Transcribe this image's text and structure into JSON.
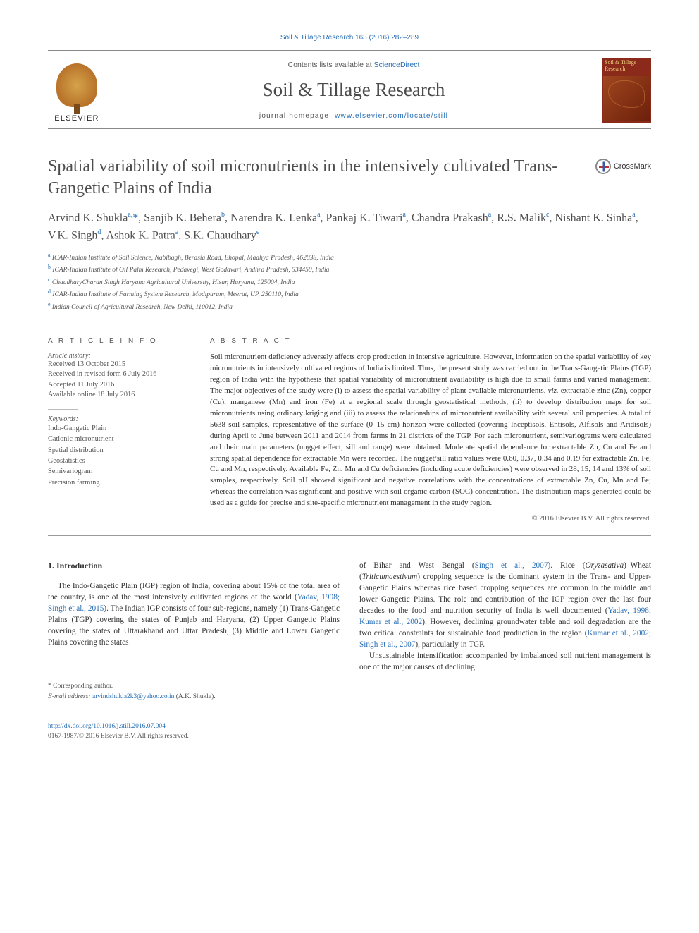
{
  "citation_header": "Soil & Tillage Research 163 (2016) 282–289",
  "masthead": {
    "contents_prefix": "Contents lists available at ",
    "contents_link_text": "ScienceDirect",
    "journal_name": "Soil & Tillage Research",
    "homepage_prefix": "journal homepage: ",
    "homepage_link_text": "www.elsevier.com/locate/still",
    "publisher_logo_text": "ELSEVIER",
    "cover_title": "Soil & Tillage Research"
  },
  "article": {
    "title": "Spatial variability of soil micronutrients in the intensively cultivated Trans-Gangetic Plains of India",
    "crossmark_label": "CrossMark",
    "authors_html": "Arvind K. Shukla<sup>a,</sup><span class='corr'>*</span>, Sanjib K. Behera<sup>b</sup>, Narendra K. Lenka<sup>a</sup>, Pankaj K. Tiwari<sup>a</sup>, Chandra Prakash<sup>a</sup>, R.S. Malik<sup>c</sup>, Nishant K. Sinha<sup>a</sup>, V.K. Singh<sup>d</sup>, Ashok K. Patra<sup>a</sup>, S.K. Chaudhary<sup>e</sup>",
    "affiliations": [
      {
        "sup": "a",
        "text": "ICAR-Indian Institute of Soil Science, Nabibagh, Berasia Road, Bhopal, Madhya Pradesh, 462038, India"
      },
      {
        "sup": "b",
        "text": "ICAR-Indian Institute of Oil Palm Research, Pedavegi, West Godavari, Andhra Pradesh, 534450, India"
      },
      {
        "sup": "c",
        "text": "ChaudharyCharan Singh Haryana Agricultural University, Hisar, Haryana, 125004, India"
      },
      {
        "sup": "d",
        "text": "ICAR-Indian Institute of Farming System Research, Modipuram, Meerut, UP, 250110, India"
      },
      {
        "sup": "e",
        "text": "Indian Council of Agricultural Research, New Delhi, 110012, India"
      }
    ]
  },
  "info": {
    "header": "A R T I C L E   I N F O",
    "history_label": "Article history:",
    "history": [
      "Received 13 October 2015",
      "Received in revised form 6 July 2016",
      "Accepted 11 July 2016",
      "Available online 18 July 2016"
    ],
    "keywords_label": "Keywords:",
    "keywords": [
      "Indo-Gangetic Plain",
      "Cationic micronutrient",
      "Spatial distribution",
      "Geostatistics",
      "Semivariogram",
      "Precision farming"
    ]
  },
  "abstract": {
    "header": "A B S T R A C T",
    "text": "Soil micronutrient deficiency adversely affects crop production in intensive agriculture. However, information on the spatial variability of key micronutrients in intensively cultivated regions of India is limited. Thus, the present study was carried out in the Trans-Gangetic Plains (TGP) region of India with the hypothesis that spatial variability of micronutrient availability is high due to small farms and varied management. The major objectives of the study were (i) to assess the spatial variability of plant available micronutrients, viz. extractable zinc (Zn), copper (Cu), manganese (Mn) and iron (Fe) at a regional scale through geostatistical methods, (ii) to develop distribution maps for soil micronutrients using ordinary kriging and (iii) to assess the relationships of micronutrient availability with several soil properties. A total of 5638 soil samples, representative of the surface (0–15 cm) horizon were collected (covering Inceptisols, Entisols, Alfisols and Aridisols) during April to June between 2011 and 2014 from farms in 21 districts of the TGP. For each micronutrient, semivariograms were calculated and their main parameters (nugget effect, sill and range) were obtained. Moderate spatial dependence for extractable Zn, Cu and Fe and strong spatial dependence for extractable Mn were recorded. The nugget/sill ratio values were 0.60, 0.37, 0.34 and 0.19 for extractable Zn, Fe, Cu and Mn, respectively. Available Fe, Zn, Mn and Cu deficiencies (including acute deficiencies) were observed in 28, 15, 14 and 13% of soil samples, respectively. Soil pH showed significant and negative correlations with the concentrations of extractable Zn, Cu, Mn and Fe; whereas the correlation was significant and positive with soil organic carbon (SOC) concentration. The distribution maps generated could be used as a guide for precise and site-specific micronutrient management in the study region.",
    "copyright": "© 2016 Elsevier B.V. All rights reserved."
  },
  "body": {
    "section_heading": "1. Introduction",
    "para1_pre": "The Indo-Gangetic Plain (IGP) region of India, covering about 15% of the total area of the country, is one of the most intensively cultivated regions of the world (",
    "para1_cite1": "Yadav, 1998; Singh et al., 2015",
    "para1_post": "). The Indian IGP consists of four sub-regions, namely (1) Trans-Gangetic Plains (TGP) covering the states of Punjab and Haryana, (2) Upper Gangetic Plains covering the states of Uttarakhand and Uttar Pradesh, (3) Middle and Lower Gangetic Plains covering the states ",
    "para1_col2_pre": "of Bihar and West Bengal (",
    "para1_col2_cite1": "Singh et al., 2007",
    "para1_col2_mid1": "). Rice (",
    "para1_col2_sp1": "Oryzasativa",
    "para1_col2_mid2": ")–Wheat (",
    "para1_col2_sp2": "Triticumaestivum",
    "para1_col2_mid3": ") cropping sequence is the dominant system in the Trans- and Upper-Gangetic Plains whereas rice based cropping sequences are common in the middle and lower Gangetic Plains. The role and contribution of the IGP region over the last four decades to the food and nutrition security of India is well documented (",
    "para1_col2_cite2": "Yadav, 1998; Kumar et al., 2002",
    "para1_col2_mid4": "). However, declining groundwater table and soil degradation are the two critical constraints for sustainable food production in the region (",
    "para1_col2_cite3": "Kumar et al., 2002; Singh et al., 2007",
    "para1_col2_end": "), particularly in TGP.",
    "para2": "Unsustainable intensification accompanied by imbalanced soil nutrient management is one of the major causes of declining"
  },
  "footer": {
    "correspond_label": "* Corresponding author.",
    "email_label": "E-mail address: ",
    "email_value": "arvindshukla2k3@yahoo.co.in",
    "email_suffix": " (A.K. Shukla).",
    "doi_link": "http://dx.doi.org/10.1016/j.still.2016.07.004",
    "issn_line": "0167-1987/© 2016 Elsevier B.V. All rights reserved."
  },
  "colors": {
    "link": "#2a6fb5",
    "text": "#333333",
    "muted": "#555555",
    "rule": "#999999",
    "cover_bg": "#8b2a1a",
    "cover_accent": "#f0d080"
  },
  "typography": {
    "title_fontsize": 24,
    "journal_fontsize": 27,
    "author_fontsize": 16,
    "body_fontsize": 11.3,
    "abstract_fontsize": 11,
    "small_fontsize": 10
  }
}
